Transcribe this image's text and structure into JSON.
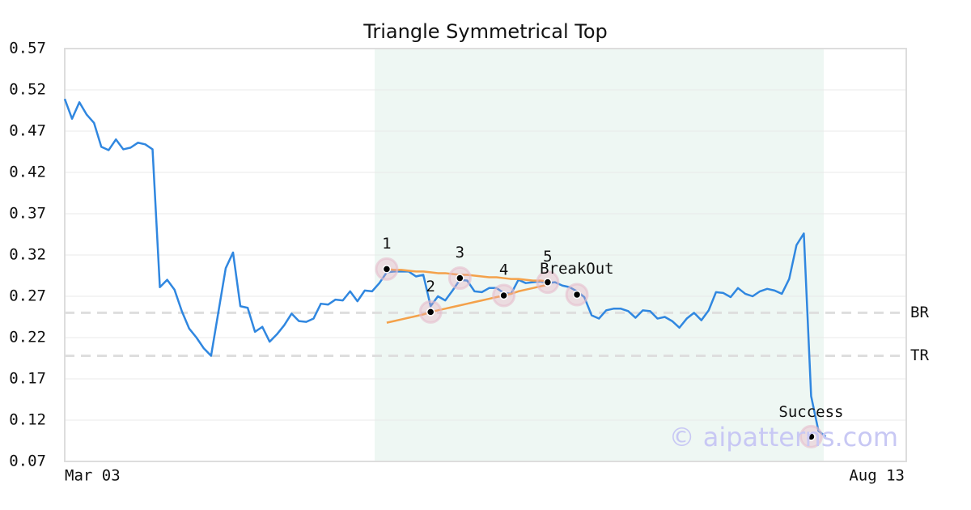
{
  "chart_data": {
    "type": "line",
    "title": "Triangle Symmetrical Top",
    "watermark": "© aipatterns.com",
    "categories": [
      "Mar 03",
      null,
      null,
      null,
      null,
      null,
      null,
      null,
      null,
      null,
      null,
      null,
      null,
      null,
      null,
      null,
      null,
      null,
      null,
      null,
      null,
      null,
      null,
      null,
      null,
      null,
      null,
      null,
      null,
      null,
      null,
      null,
      null,
      null,
      null,
      null,
      null,
      null,
      null,
      null,
      null,
      null,
      null,
      null,
      null,
      null,
      null,
      null,
      null,
      null,
      null,
      null,
      null,
      null,
      null,
      null,
      null,
      null,
      null,
      null,
      null,
      null,
      null,
      null,
      null,
      null,
      null,
      null,
      null,
      null,
      null,
      null,
      null,
      null,
      null,
      null,
      null,
      null,
      null,
      null,
      null,
      null,
      null,
      null,
      null,
      null,
      null,
      null,
      null,
      null,
      null,
      null,
      null,
      null,
      null,
      null,
      null,
      null,
      null,
      null,
      null,
      null,
      null,
      null,
      null,
      null,
      null,
      null,
      null,
      null,
      null,
      null,
      null,
      null,
      null,
      "Aug 13"
    ],
    "series": [
      {
        "color": "#3087e0",
        "values": [
          0.509,
          0.485,
          0.505,
          0.49,
          0.48,
          0.451,
          0.447,
          0.46,
          0.448,
          0.45,
          0.456,
          0.454,
          0.448,
          0.281,
          0.29,
          0.278,
          0.252,
          0.231,
          0.22,
          0.207,
          0.198,
          0.251,
          0.304,
          0.323,
          0.258,
          0.256,
          0.227,
          0.233,
          0.215,
          0.224,
          0.235,
          0.249,
          0.24,
          0.239,
          0.243,
          0.261,
          0.26,
          0.266,
          0.265,
          0.276,
          0.264,
          0.277,
          0.276,
          0.286,
          0.299,
          0.3,
          0.3,
          0.3,
          0.294,
          0.296,
          0.258,
          0.27,
          0.265,
          0.277,
          0.29,
          0.289,
          0.276,
          0.275,
          0.28,
          0.28,
          0.274,
          0.273,
          0.29,
          0.286,
          0.287,
          0.288,
          0.286,
          0.287,
          0.283,
          0.281,
          0.276,
          0.269,
          0.247,
          0.243,
          0.253,
          0.255,
          0.255,
          0.252,
          0.244,
          0.253,
          0.252,
          0.243,
          0.245,
          0.24,
          0.232,
          0.243,
          0.25,
          0.241,
          0.253,
          0.275,
          0.274,
          0.269,
          0.28,
          0.273,
          0.27,
          0.276,
          0.279,
          0.277,
          0.273,
          0.291,
          0.332,
          0.346,
          0.149,
          0.107,
          0.1,
          null,
          null,
          null,
          null,
          null,
          null,
          null,
          null,
          null,
          null,
          null
        ]
      },
      {
        "color": "#f4a14a",
        "values": [
          null,
          null,
          null,
          null,
          null,
          null,
          null,
          null,
          null,
          null,
          null,
          null,
          null,
          null,
          null,
          null,
          null,
          null,
          null,
          null,
          null,
          null,
          null,
          null,
          null,
          null,
          null,
          null,
          null,
          null,
          null,
          null,
          null,
          null,
          null,
          null,
          null,
          null,
          null,
          null,
          null,
          null,
          null,
          null,
          0.303,
          0.302,
          0.302,
          0.301,
          0.3,
          0.3,
          0.299,
          0.298,
          0.298,
          0.297,
          0.296,
          0.296,
          0.295,
          0.294,
          0.293,
          0.293,
          0.292,
          0.291,
          0.291,
          0.29,
          0.289,
          0.289,
          0.288,
          null,
          null,
          null,
          null,
          null,
          null,
          null,
          null,
          null,
          null,
          null,
          null,
          null,
          null,
          null,
          null,
          null,
          null,
          null,
          null,
          null,
          null,
          null,
          null,
          null,
          null,
          null,
          null,
          null,
          null,
          null,
          null,
          null,
          null,
          null,
          null,
          null,
          null,
          null,
          null,
          null,
          null,
          null,
          null,
          null,
          null,
          null,
          null,
          null
        ]
      },
      {
        "color": "#f4a14a",
        "values": [
          null,
          null,
          null,
          null,
          null,
          null,
          null,
          null,
          null,
          null,
          null,
          null,
          null,
          null,
          null,
          null,
          null,
          null,
          null,
          null,
          null,
          null,
          null,
          null,
          null,
          null,
          null,
          null,
          null,
          null,
          null,
          null,
          null,
          null,
          null,
          null,
          null,
          null,
          null,
          null,
          null,
          null,
          null,
          null,
          0.238,
          0.24,
          0.242,
          0.244,
          0.246,
          0.248,
          0.251,
          0.253,
          0.255,
          0.257,
          0.259,
          0.261,
          0.263,
          0.265,
          0.267,
          0.269,
          0.271,
          0.273,
          0.276,
          0.278,
          0.28,
          0.282,
          0.284,
          null,
          null,
          null,
          null,
          null,
          null,
          null,
          null,
          null,
          null,
          null,
          null,
          null,
          null,
          null,
          null,
          null,
          null,
          null,
          null,
          null,
          null,
          null,
          null,
          null,
          null,
          null,
          null,
          null,
          null,
          null,
          null,
          null,
          null,
          null,
          null,
          null,
          null,
          null,
          null,
          null,
          null,
          null,
          null,
          null,
          null,
          null,
          null,
          null
        ]
      }
    ],
    "markers": {
      "values": [
        null,
        null,
        null,
        null,
        null,
        null,
        null,
        null,
        null,
        null,
        null,
        null,
        null,
        null,
        null,
        null,
        null,
        null,
        null,
        null,
        null,
        null,
        null,
        null,
        null,
        null,
        null,
        null,
        null,
        null,
        null,
        null,
        null,
        null,
        null,
        null,
        null,
        null,
        null,
        null,
        null,
        null,
        null,
        null,
        0.303,
        null,
        null,
        null,
        null,
        null,
        0.251,
        null,
        null,
        null,
        0.292,
        null,
        null,
        null,
        null,
        null,
        0.271,
        null,
        null,
        null,
        null,
        null,
        0.287,
        null,
        null,
        null,
        0.272,
        null,
        null,
        null,
        null,
        null,
        null,
        null,
        null,
        null,
        null,
        null,
        null,
        null,
        null,
        null,
        null,
        null,
        null,
        null,
        null,
        null,
        null,
        null,
        null,
        null,
        null,
        null,
        null,
        null,
        null,
        null,
        0.1,
        null,
        null,
        null,
        null,
        null,
        null,
        null,
        null,
        null,
        null,
        null,
        null,
        null
      ],
      "labels": [
        null,
        null,
        null,
        null,
        null,
        null,
        null,
        null,
        null,
        null,
        null,
        null,
        null,
        null,
        null,
        null,
        null,
        null,
        null,
        null,
        null,
        null,
        null,
        null,
        null,
        null,
        null,
        null,
        null,
        null,
        null,
        null,
        null,
        null,
        null,
        null,
        null,
        null,
        null,
        null,
        null,
        null,
        null,
        null,
        "1",
        null,
        null,
        null,
        null,
        null,
        "2",
        null,
        null,
        null,
        "3",
        null,
        null,
        null,
        null,
        null,
        "4",
        null,
        null,
        null,
        null,
        null,
        "5",
        null,
        null,
        null,
        null,
        null,
        null,
        null,
        null,
        null,
        null,
        null,
        null,
        null,
        null,
        null,
        null,
        null,
        null,
        null,
        null,
        null,
        null,
        null,
        null,
        null,
        null,
        null,
        null,
        null,
        null,
        null,
        null,
        null,
        null,
        null,
        null,
        null,
        null,
        null,
        null,
        null,
        null,
        null,
        null,
        null,
        null,
        null,
        null,
        null
      ],
      "notes": [
        null,
        null,
        null,
        null,
        null,
        null,
        null,
        null,
        null,
        null,
        null,
        null,
        null,
        null,
        null,
        null,
        null,
        null,
        null,
        null,
        null,
        null,
        null,
        null,
        null,
        null,
        null,
        null,
        null,
        null,
        null,
        null,
        null,
        null,
        null,
        null,
        null,
        null,
        null,
        null,
        null,
        null,
        null,
        null,
        null,
        null,
        null,
        null,
        null,
        null,
        null,
        null,
        null,
        null,
        null,
        null,
        null,
        null,
        null,
        null,
        null,
        null,
        null,
        null,
        null,
        null,
        "BreakOut",
        null,
        null,
        null,
        null,
        null,
        null,
        null,
        null,
        null,
        null,
        null,
        null,
        null,
        null,
        null,
        null,
        null,
        null,
        null,
        null,
        null,
        null,
        null,
        null,
        null,
        null,
        null,
        null,
        null,
        null,
        null,
        null,
        null,
        null,
        null,
        "Success",
        null,
        null,
        null,
        null,
        null,
        null,
        null,
        null,
        null,
        null,
        null,
        null,
        null
      ]
    },
    "hlines": [
      {
        "label": "BR",
        "value": 0.25
      },
      {
        "label": "TR",
        "value": 0.198
      }
    ],
    "ylim": [
      0.07,
      0.57
    ],
    "yticks": [
      0.07,
      0.12,
      0.17,
      0.22,
      0.27,
      0.32,
      0.37,
      0.42,
      0.47,
      0.52,
      0.57
    ],
    "grid": true
  }
}
